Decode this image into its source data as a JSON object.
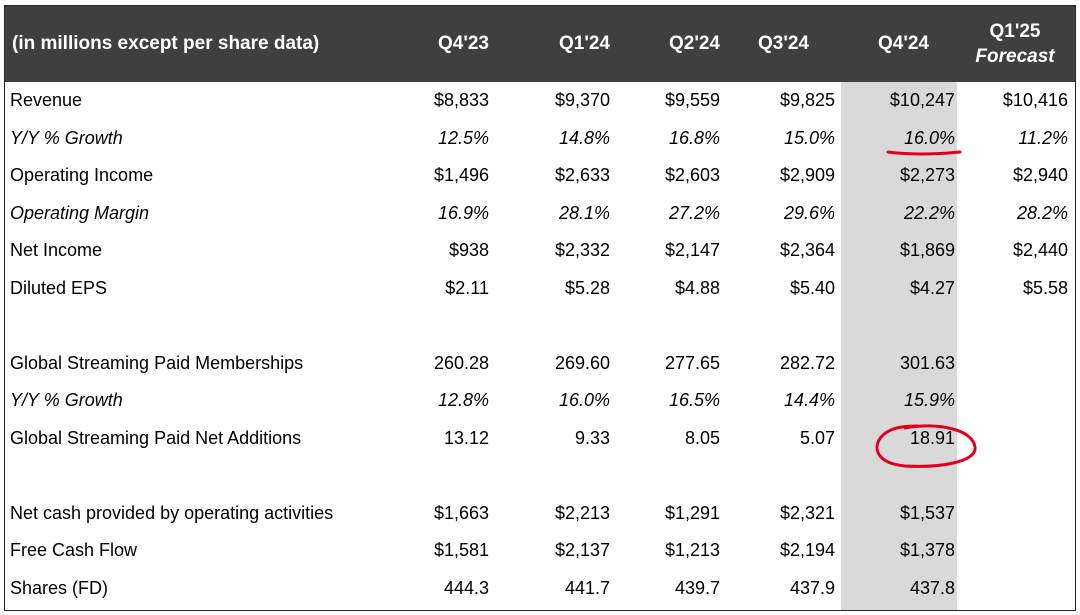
{
  "header": {
    "label": "(in millions except per share data)",
    "columns": [
      "Q4'23",
      "Q1'24",
      "Q2'24",
      "Q3'24",
      "Q4'24"
    ],
    "forecast_line1": "Q1'25",
    "forecast_line2": "Forecast"
  },
  "highlight_color": "#d9d9d9",
  "annotation_color": "#e0001b",
  "rows": [
    {
      "label": "Revenue",
      "italic": false,
      "values": [
        "$8,833",
        "$9,370",
        "$9,559",
        "$9,825",
        "$10,247",
        "$10,416"
      ]
    },
    {
      "label": "Y/Y % Growth",
      "italic": true,
      "values": [
        "12.5%",
        "14.8%",
        "16.8%",
        "15.0%",
        "16.0%",
        "11.2%"
      ]
    },
    {
      "label": "Operating Income",
      "italic": false,
      "values": [
        "$1,496",
        "$2,633",
        "$2,603",
        "$2,909",
        "$2,273",
        "$2,940"
      ]
    },
    {
      "label": "Operating Margin",
      "italic": true,
      "values": [
        "16.9%",
        "28.1%",
        "27.2%",
        "29.6%",
        "22.2%",
        "28.2%"
      ]
    },
    {
      "label": "Net Income",
      "italic": false,
      "values": [
        "$938",
        "$2,332",
        "$2,147",
        "$2,364",
        "$1,869",
        "$2,440"
      ]
    },
    {
      "label": "Diluted EPS",
      "italic": false,
      "values": [
        "$2.11",
        "$5.28",
        "$4.88",
        "$5.40",
        "$4.27",
        "$5.58"
      ]
    },
    {
      "label": "",
      "italic": false,
      "values": [
        "",
        "",
        "",
        "",
        "",
        ""
      ]
    },
    {
      "label": "Global Streaming Paid Memberships",
      "italic": false,
      "values": [
        "260.28",
        "269.60",
        "277.65",
        "282.72",
        "301.63",
        ""
      ]
    },
    {
      "label": "Y/Y % Growth",
      "italic": true,
      "values": [
        "12.8%",
        "16.0%",
        "16.5%",
        "14.4%",
        "15.9%",
        ""
      ]
    },
    {
      "label": "Global Streaming Paid Net Additions",
      "italic": false,
      "values": [
        "13.12",
        "9.33",
        "8.05",
        "5.07",
        "18.91",
        ""
      ]
    },
    {
      "label": "",
      "italic": false,
      "values": [
        "",
        "",
        "",
        "",
        "",
        ""
      ]
    },
    {
      "label": "Net cash provided by operating activities",
      "italic": false,
      "values": [
        "$1,663",
        "$2,213",
        "$1,291",
        "$2,321",
        "$1,537",
        ""
      ]
    },
    {
      "label": "Free Cash Flow",
      "italic": false,
      "values": [
        "$1,581",
        "$2,137",
        "$1,213",
        "$2,194",
        "$1,378",
        ""
      ]
    },
    {
      "label": "Shares (FD)",
      "italic": false,
      "values": [
        "444.3",
        "441.7",
        "439.7",
        "437.9",
        "437.8",
        ""
      ]
    }
  ]
}
